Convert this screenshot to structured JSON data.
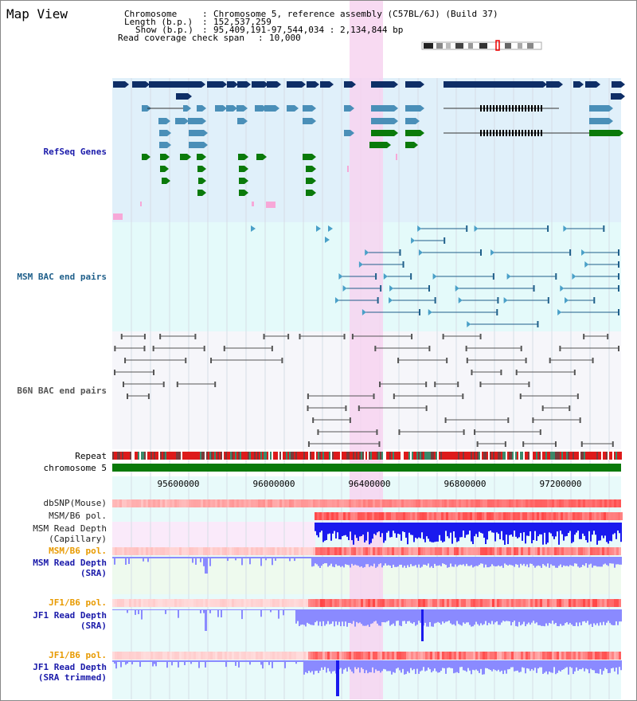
{
  "view": {
    "title": "Map View",
    "chromosome_label": "Chromosome",
    "chromosome_value": "Chromosome 5, reference assembly (C57BL/6J) (Build 37)",
    "length_label": "Length (b.p.)",
    "length_value": "152,537,259",
    "show_label": "Show (b.p.)",
    "show_value": "95,409,191-97,544,034 : 2,134,844 bp",
    "coverage_label": "Read coverage check span",
    "coverage_value": "10,000",
    "separator": ":"
  },
  "tracks": {
    "refseq": {
      "label": "RefSeq Genes",
      "color": "#1a1aaa"
    },
    "msm_bac": {
      "label": "MSM BAC end pairs",
      "color": "#1f5f8a"
    },
    "b6n_bac": {
      "label": "B6N BAC end pairs",
      "color": "#555555"
    },
    "repeat": {
      "label": "Repeat"
    },
    "chromosome": {
      "label": "chromosome 5"
    },
    "dbsnp": {
      "label": "dbSNP(Mouse)"
    },
    "msm_b6_pol_1": {
      "label": "MSM/B6 pol."
    },
    "msm_read_depth_cap": {
      "label_line1": "MSM Read Depth",
      "label_line2": "(Capillary)"
    },
    "msm_b6_pol_2": {
      "label": "MSM/B6 pol.",
      "color": "#e89a00"
    },
    "msm_read_depth_sra": {
      "label_line1": "MSM Read Depth",
      "label_line2": "(SRA)",
      "color": "#1a1aaa"
    },
    "jf1_b6_pol_1": {
      "label": "JF1/B6 pol.",
      "color": "#e89a00"
    },
    "jf1_read_depth_sra": {
      "label_line1": "JF1 Read Depth",
      "label_line2": "(SRA)",
      "color": "#1a1aaa"
    },
    "jf1_b6_pol_2": {
      "label": "JF1/B6 pol.",
      "color": "#e89a00"
    },
    "jf1_read_depth_trim": {
      "label_line1": "JF1 Read Depth",
      "label_line2": "(SRA trimmed)",
      "color": "#1a1aaa"
    }
  },
  "axis": {
    "ticks": [
      "95600000",
      "96000000",
      "96400000",
      "96800000",
      "97200000"
    ]
  },
  "colors": {
    "refseq_bg": "#e0f0fa",
    "msm_bg": "#e4fafa",
    "b6n_bg": "#f6f6fa",
    "highlight": "#f7d4f0",
    "gene_dark": "#0e2e66",
    "gene_mid": "#4a8fb8",
    "gene_green": "#0a7a0a",
    "depth_dark": "#1a1aee",
    "depth_light": "#8a8aff",
    "chromosome_bar": "#0a7a0a"
  }
}
